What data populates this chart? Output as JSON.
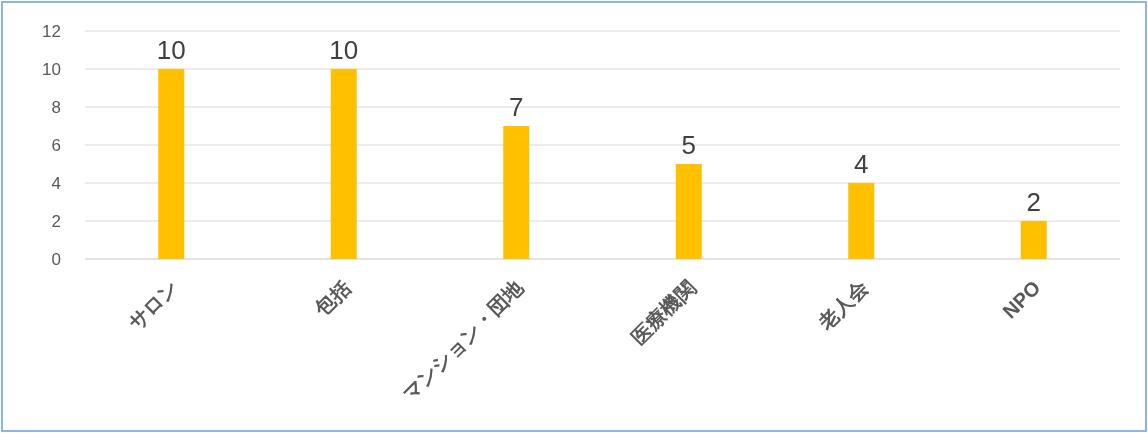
{
  "chart_data": {
    "type": "bar",
    "categories": [
      "サロン",
      "包括",
      "マンション・団地",
      "医療機関",
      "老人会",
      "NPO"
    ],
    "values": [
      10,
      10,
      7,
      5,
      4,
      2
    ],
    "color": "#ffc000",
    "ylim": [
      0,
      12
    ],
    "yticks": [
      0,
      2,
      4,
      6,
      8,
      10,
      12
    ],
    "grid": "y",
    "data_labels": true
  }
}
